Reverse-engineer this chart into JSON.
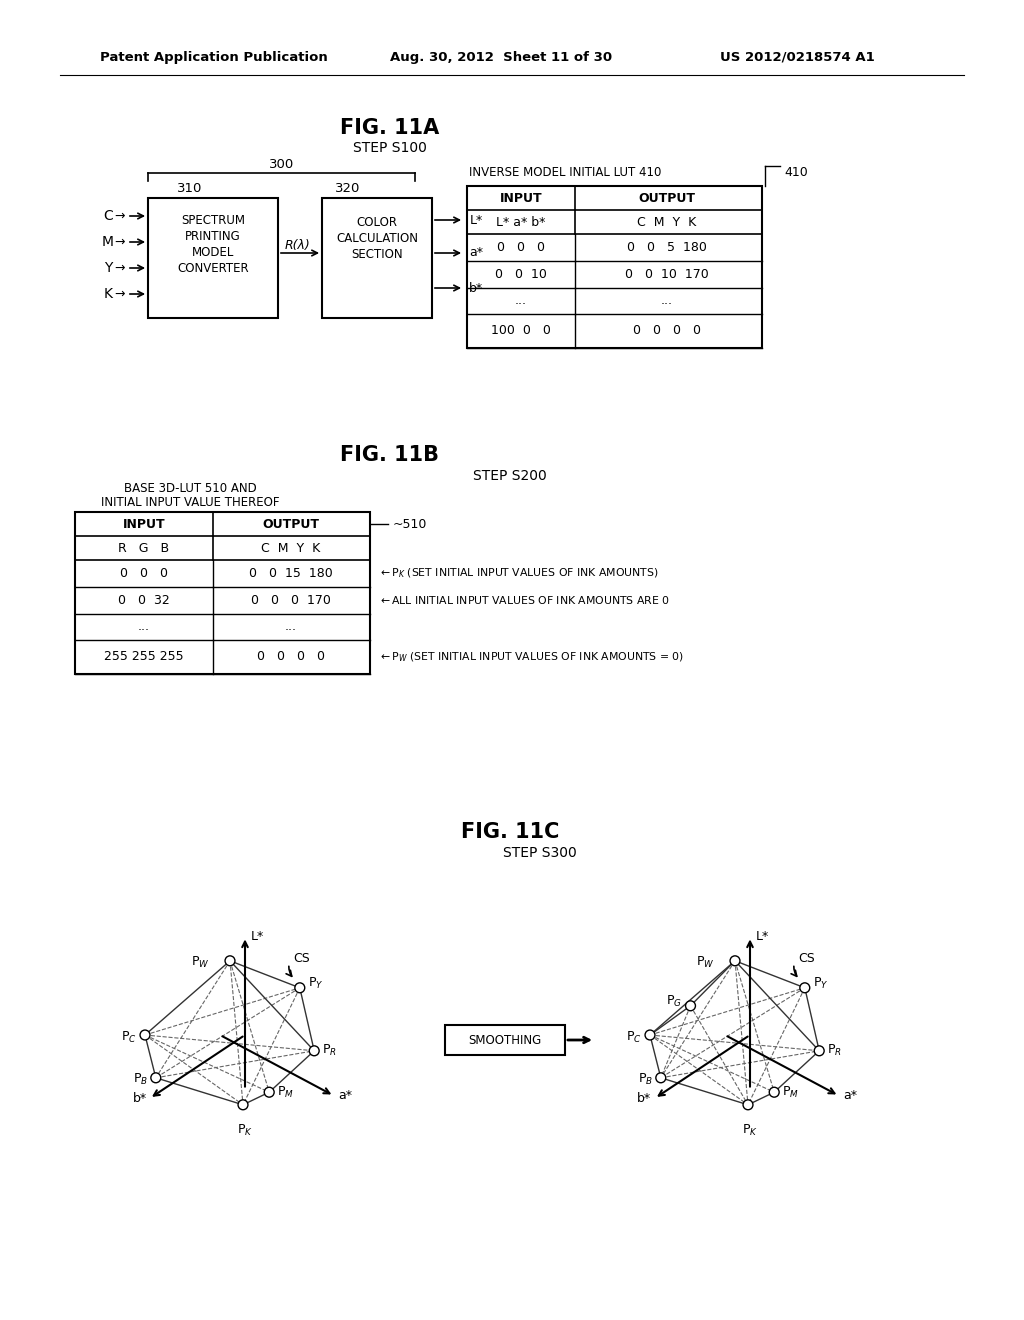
{
  "header_left": "Patent Application Publication",
  "header_mid": "Aug. 30, 2012  Sheet 11 of 30",
  "header_right": "US 2012/0218574 A1",
  "fig11a_title": "FIG. 11A",
  "fig11a_step": "STEP S100",
  "fig11b_title": "FIG. 11B",
  "fig11b_step": "STEP S200",
  "fig11c_title": "FIG. 11C",
  "fig11c_step": "STEP S300",
  "background_color": "#ffffff",
  "text_color": "#000000",
  "line_color": "#000000"
}
